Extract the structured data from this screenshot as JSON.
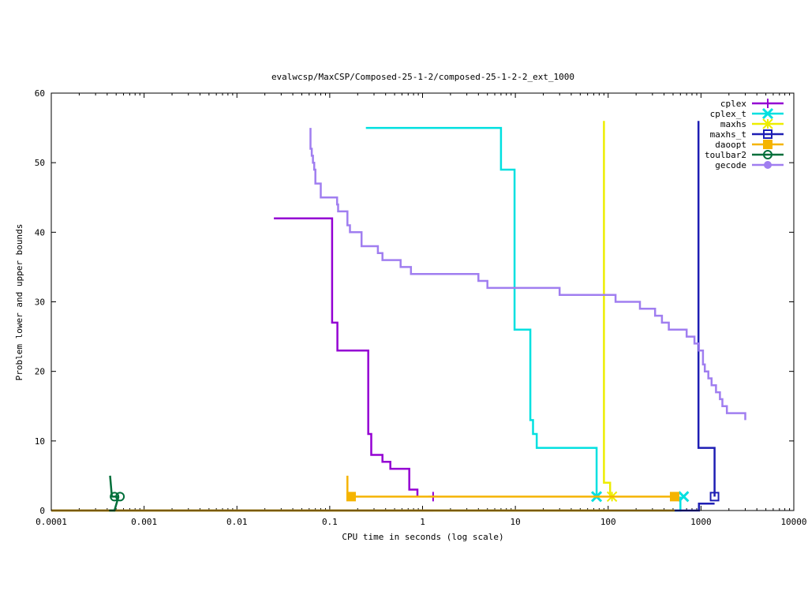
{
  "chart_data": {
    "type": "line",
    "title": "evalwcsp/MaxCSP/Composed-25-1-2/composed-25-1-2-2_ext_1000",
    "xlabel": "CPU time in seconds (log scale)",
    "ylabel": "Problem lower and upper bounds",
    "x_scale": "log",
    "xlim": [
      0.0001,
      10000
    ],
    "ylim": [
      0,
      60
    ],
    "x_ticks": [
      0.0001,
      0.001,
      0.01,
      0.1,
      1,
      10,
      100,
      1000,
      10000
    ],
    "x_tick_labels": [
      "0.0001",
      "0.001",
      "0.01",
      "0.1",
      "1",
      "10",
      "100",
      "1000",
      "10000"
    ],
    "y_ticks": [
      0,
      10,
      20,
      30,
      40,
      50,
      60
    ],
    "y_tick_labels": [
      "0",
      "10",
      "20",
      "30",
      "40",
      "50",
      "60"
    ],
    "legend_position": "top-right",
    "series": [
      {
        "name": "cplex",
        "color": "#9400d3",
        "marker": "plus",
        "upper": [
          [
            0.025,
            42
          ],
          [
            0.106,
            42
          ],
          [
            0.106,
            27
          ],
          [
            0.121,
            27
          ],
          [
            0.121,
            23
          ],
          [
            0.26,
            23
          ],
          [
            0.26,
            11
          ],
          [
            0.28,
            11
          ],
          [
            0.28,
            8
          ],
          [
            0.37,
            8
          ],
          [
            0.37,
            7
          ],
          [
            0.45,
            7
          ],
          [
            0.45,
            6
          ],
          [
            0.72,
            6
          ],
          [
            0.72,
            3
          ],
          [
            0.88,
            3
          ],
          [
            0.88,
            2
          ]
        ],
        "lower": [
          [
            0.0001,
            0
          ],
          [
            1.3,
            0
          ]
        ],
        "markers": [
          [
            1.3,
            2
          ]
        ]
      },
      {
        "name": "cplex_t",
        "color": "#00e0e0",
        "marker": "x",
        "upper": [
          [
            0.245,
            55
          ],
          [
            7.0,
            55
          ],
          [
            7.0,
            49
          ],
          [
            9.8,
            49
          ],
          [
            9.8,
            26
          ],
          [
            14.5,
            26
          ],
          [
            14.5,
            13
          ],
          [
            15.5,
            13
          ],
          [
            15.5,
            11
          ],
          [
            17,
            11
          ],
          [
            17,
            9
          ],
          [
            75,
            9
          ],
          [
            75,
            2
          ]
        ],
        "lower": [
          [
            0.0001,
            0
          ],
          [
            600,
            0
          ],
          [
            600,
            2
          ]
        ],
        "markers": [
          [
            75,
            2
          ],
          [
            650,
            2
          ]
        ]
      },
      {
        "name": "maxhs",
        "color": "#eded00",
        "marker": "star",
        "upper": [
          [
            90,
            56
          ],
          [
            90,
            4
          ],
          [
            105,
            4
          ],
          [
            105,
            2
          ]
        ],
        "lower": [
          [
            0.0001,
            0
          ],
          [
            105,
            0
          ]
        ],
        "markers": [
          [
            110,
            2
          ]
        ]
      },
      {
        "name": "maxhs_t",
        "color": "#1e1eb4",
        "marker": "square",
        "upper": [
          [
            940,
            56
          ],
          [
            940,
            9
          ],
          [
            1400,
            9
          ],
          [
            1400,
            2
          ]
        ],
        "lower": [
          [
            0.0001,
            0
          ],
          [
            950,
            0
          ],
          [
            950,
            1
          ],
          [
            1400,
            1
          ]
        ],
        "markers": [
          [
            1400,
            2
          ]
        ]
      },
      {
        "name": "daoopt",
        "color": "#f5b400",
        "marker": "filled-square",
        "upper": [
          [
            0.155,
            5
          ],
          [
            0.155,
            2
          ],
          [
            520,
            2
          ]
        ],
        "lower": [
          [
            0.0001,
            0
          ],
          [
            520,
            0
          ]
        ],
        "markers": [
          [
            0.17,
            2
          ],
          [
            520,
            2
          ]
        ]
      },
      {
        "name": "toulbar2",
        "color": "#006f3a",
        "marker": "circle",
        "upper": [
          [
            0.00043,
            5
          ],
          [
            0.00045,
            2
          ],
          [
            0.00053,
            2
          ]
        ],
        "lower": [
          [
            0.00042,
            0
          ],
          [
            0.00048,
            0
          ],
          [
            0.00053,
            2
          ]
        ],
        "markers": [
          [
            0.00048,
            2
          ],
          [
            0.00055,
            2
          ]
        ]
      },
      {
        "name": "gecode",
        "color": "#a07ef0",
        "marker": "filled-circle",
        "upper": [
          [
            0.062,
            55
          ],
          [
            0.062,
            52
          ],
          [
            0.064,
            52
          ],
          [
            0.064,
            51
          ],
          [
            0.066,
            51
          ],
          [
            0.066,
            50
          ],
          [
            0.068,
            50
          ],
          [
            0.068,
            49
          ],
          [
            0.07,
            49
          ],
          [
            0.07,
            47
          ],
          [
            0.08,
            47
          ],
          [
            0.08,
            45
          ],
          [
            0.12,
            45
          ],
          [
            0.12,
            44
          ],
          [
            0.123,
            44
          ],
          [
            0.123,
            43
          ],
          [
            0.155,
            43
          ],
          [
            0.155,
            41
          ],
          [
            0.165,
            41
          ],
          [
            0.165,
            40
          ],
          [
            0.22,
            40
          ],
          [
            0.22,
            38
          ],
          [
            0.33,
            38
          ],
          [
            0.33,
            37
          ],
          [
            0.37,
            37
          ],
          [
            0.37,
            36
          ],
          [
            0.58,
            36
          ],
          [
            0.58,
            35
          ],
          [
            0.75,
            35
          ],
          [
            0.75,
            34
          ],
          [
            4.0,
            34
          ],
          [
            4.0,
            33
          ],
          [
            5.0,
            33
          ],
          [
            5.0,
            32
          ],
          [
            30,
            32
          ],
          [
            30,
            31
          ],
          [
            120,
            31
          ],
          [
            120,
            30
          ],
          [
            220,
            30
          ],
          [
            220,
            29
          ],
          [
            320,
            29
          ],
          [
            320,
            28
          ],
          [
            380,
            28
          ],
          [
            380,
            27
          ],
          [
            450,
            27
          ],
          [
            450,
            26
          ],
          [
            700,
            26
          ],
          [
            700,
            25
          ],
          [
            850,
            25
          ],
          [
            850,
            24
          ],
          [
            950,
            24
          ],
          [
            950,
            23
          ],
          [
            1050,
            23
          ],
          [
            1050,
            21
          ],
          [
            1100,
            21
          ],
          [
            1100,
            20
          ],
          [
            1200,
            20
          ],
          [
            1200,
            19
          ],
          [
            1300,
            19
          ],
          [
            1300,
            18
          ],
          [
            1450,
            18
          ],
          [
            1450,
            17
          ],
          [
            1600,
            17
          ],
          [
            1600,
            16
          ],
          [
            1700,
            16
          ],
          [
            1700,
            15
          ],
          [
            1900,
            15
          ],
          [
            1900,
            14
          ],
          [
            3000,
            14
          ],
          [
            3000,
            13
          ]
        ],
        "lower": [],
        "markers": []
      }
    ]
  }
}
